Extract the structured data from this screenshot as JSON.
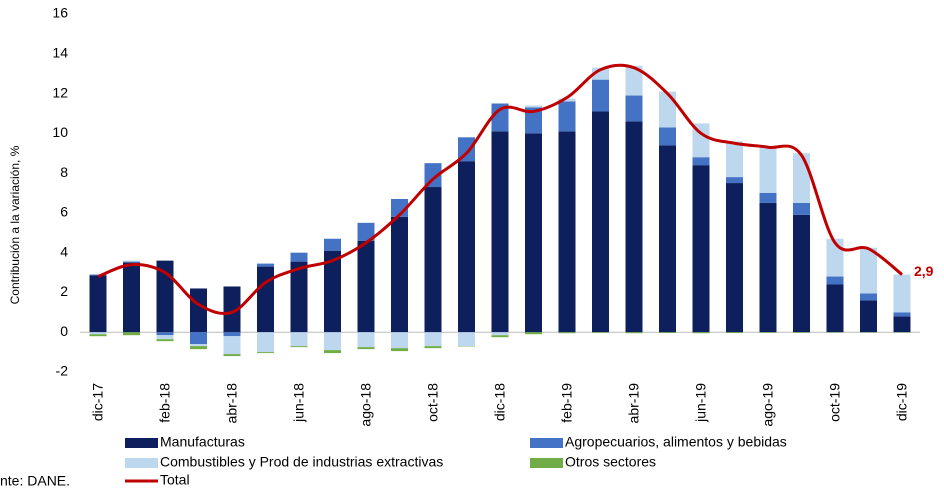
{
  "chart_data": {
    "type": "stacked_bar_line",
    "y_label": "Contribución a la variación, %",
    "source": "nte: DANE.",
    "categories": [
      "dic-17",
      null,
      "feb-18",
      null,
      "abr-18",
      null,
      "jun-18",
      null,
      "ago-18",
      null,
      "oct-18",
      null,
      "dic-18",
      null,
      "feb-19",
      null,
      "abr-19",
      null,
      "jun-19",
      null,
      "ago-19",
      null,
      "oct-19",
      null,
      "dic-19"
    ],
    "ylim": [
      -2,
      16
    ],
    "yticks": [
      -2,
      0,
      2,
      4,
      6,
      8,
      10,
      12,
      14,
      16
    ],
    "series": [
      {
        "name": "Manufacturas",
        "color": "#0d1f5c",
        "values": [
          2.85,
          3.5,
          3.6,
          2.2,
          2.3,
          3.3,
          3.55,
          4.1,
          4.6,
          5.8,
          7.3,
          8.6,
          10.1,
          10.0,
          10.1,
          11.1,
          10.6,
          9.4,
          8.4,
          7.5,
          6.5,
          5.9,
          2.4,
          1.6,
          0.8
        ]
      },
      {
        "name": "Agropecuarios, alimentos y bebidas",
        "color": "#4472c4",
        "values": [
          0.05,
          0.05,
          -0.15,
          -0.6,
          -0.2,
          0.15,
          0.45,
          0.6,
          0.9,
          0.9,
          1.2,
          1.2,
          1.4,
          1.3,
          1.5,
          1.6,
          1.3,
          0.9,
          0.4,
          0.3,
          0.5,
          0.6,
          0.4,
          0.35,
          0.2
        ]
      },
      {
        "name": "Combustibles y Prod de industrias extractivas",
        "color": "#bdd7ee",
        "values": [
          -0.1,
          0.05,
          -0.2,
          -0.1,
          -0.9,
          -1.0,
          -0.7,
          -0.9,
          -0.75,
          -0.8,
          -0.7,
          -0.7,
          -0.15,
          0.1,
          0.15,
          0.6,
          1.5,
          1.8,
          1.7,
          1.8,
          2.3,
          2.5,
          1.9,
          2.3,
          1.9
        ]
      },
      {
        "name": "Otros sectores",
        "color": "#70ad47",
        "values": [
          -0.1,
          -0.15,
          -0.1,
          -0.15,
          -0.1,
          -0.05,
          -0.05,
          -0.15,
          -0.1,
          -0.15,
          -0.1,
          -0.02,
          -0.1,
          -0.1,
          -0.05,
          -0.03,
          -0.05,
          -0.04,
          -0.05,
          -0.04,
          -0.03,
          -0.03,
          -0.02,
          -0.02,
          -0.02
        ]
      },
      {
        "name": "Total",
        "color": "#c00000",
        "line": true,
        "values": [
          2.8,
          3.4,
          3.0,
          1.4,
          1.0,
          2.5,
          3.2,
          3.6,
          4.5,
          5.9,
          7.7,
          9.0,
          11.2,
          11.1,
          11.8,
          13.2,
          13.3,
          12.0,
          10.0,
          9.5,
          9.3,
          8.9,
          4.5,
          4.2,
          2.9
        ],
        "value_labels": [
          null,
          null,
          null,
          null,
          null,
          null,
          null,
          null,
          null,
          null,
          null,
          null,
          null,
          null,
          null,
          null,
          null,
          null,
          null,
          null,
          null,
          null,
          null,
          null,
          "2,9"
        ]
      }
    ]
  }
}
